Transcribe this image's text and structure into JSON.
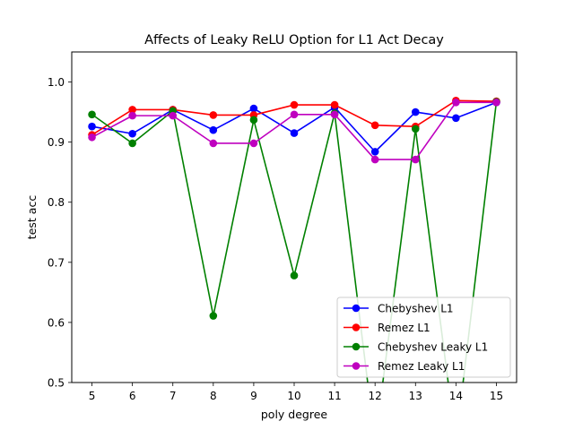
{
  "chart_data": {
    "type": "line",
    "title": "Affects of Leaky ReLU Option for L1 Act Decay",
    "xlabel": "poly degree",
    "ylabel": "test acc",
    "xlim": [
      4.5,
      15.5
    ],
    "ylim": [
      0.5,
      1.05
    ],
    "x": [
      5,
      6,
      7,
      8,
      9,
      10,
      11,
      12,
      13,
      14,
      15
    ],
    "xticks": [
      "5",
      "6",
      "7",
      "8",
      "9",
      "10",
      "11",
      "12",
      "13",
      "14",
      "15"
    ],
    "yticks": [
      {
        "value": 0.5,
        "label": "0.5"
      },
      {
        "value": 0.6,
        "label": "0.6"
      },
      {
        "value": 0.7,
        "label": "0.7"
      },
      {
        "value": 0.8,
        "label": "0.8"
      },
      {
        "value": 0.9,
        "label": "0.9"
      },
      {
        "value": 1.0,
        "label": "1.0"
      }
    ],
    "grid": false,
    "legend_position": "lower-right",
    "series": [
      {
        "name": "Chebyshev L1",
        "color": "#0000ff",
        "values": [
          0.926,
          0.914,
          0.954,
          0.92,
          0.956,
          0.915,
          0.958,
          0.884,
          0.95,
          0.94,
          0.966
        ]
      },
      {
        "name": "Remez L1",
        "color": "#ff0000",
        "values": [
          0.912,
          0.954,
          0.954,
          0.945,
          0.945,
          0.962,
          0.962,
          0.928,
          0.926,
          0.969,
          0.968
        ]
      },
      {
        "name": "Chebyshev Leaky L1",
        "color": "#008000",
        "values": [
          0.946,
          0.898,
          0.952,
          0.611,
          0.937,
          0.678,
          0.948,
          0.4,
          0.922,
          0.4,
          0.967
        ]
      },
      {
        "name": "Remez Leaky L1",
        "color": "#bf00bf",
        "values": [
          0.908,
          0.944,
          0.944,
          0.898,
          0.898,
          0.946,
          0.946,
          0.871,
          0.871,
          0.966,
          0.966
        ]
      }
    ]
  }
}
